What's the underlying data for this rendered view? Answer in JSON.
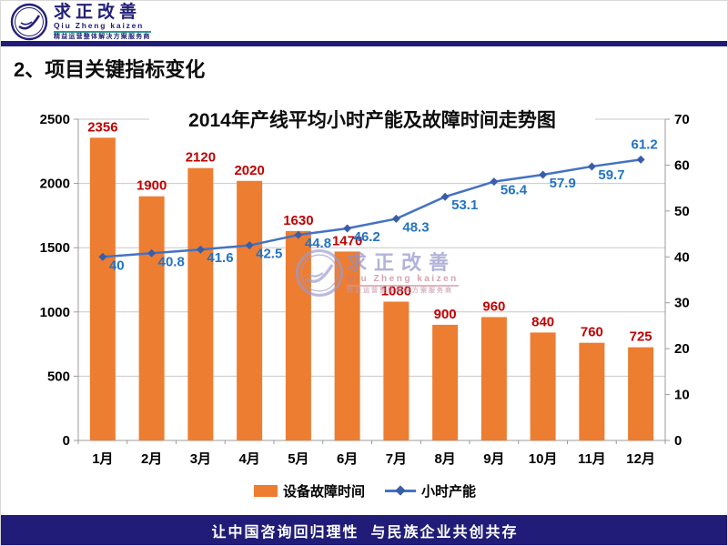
{
  "header": {
    "logo_name": "求正改善",
    "logo_pinyin": "Qiu Zheng kaizen",
    "logo_tagline": "精益运营整体解决方案服务商"
  },
  "section_title": "2、项目关键指标变化",
  "chart_data": {
    "type": "bar+line combo",
    "title": "2014年产线平均小时产能及故障时间走势图",
    "categories": [
      "1月",
      "2月",
      "3月",
      "4月",
      "5月",
      "6月",
      "7月",
      "8月",
      "9月",
      "10月",
      "11月",
      "12月"
    ],
    "series": [
      {
        "name": "设备故障时间",
        "type": "bar",
        "axis": "left",
        "color": "#ED7D31",
        "label_color": "#C00000",
        "values": [
          2356,
          1900,
          2120,
          2020,
          1630,
          1470,
          1080,
          900,
          960,
          840,
          760,
          725
        ]
      },
      {
        "name": "小时产能",
        "type": "line",
        "axis": "right",
        "color": "#4472C4",
        "label_color": "#2273C3",
        "values": [
          40,
          40.8,
          41.6,
          42.5,
          44.8,
          46.2,
          48.3,
          53.1,
          56.4,
          57.9,
          59.7,
          61.2
        ]
      }
    ],
    "left_axis": {
      "min": 0,
      "max": 2500,
      "step": 500
    },
    "right_axis": {
      "min": 0,
      "max": 70,
      "step": 10
    },
    "grid": true,
    "legend_position": "bottom"
  },
  "watermark": {
    "name": "求正改善",
    "pinyin": "Qiu Zheng kaizen",
    "tagline": "精益运营整体解决方案服务商"
  },
  "footer": {
    "slogan": "让中国咨询回归理性  与民族企业共创共存"
  },
  "colors": {
    "navy": "#211c77",
    "bar_orange": "#ED7D31",
    "line_blue": "#4472C4",
    "bar_label_red": "#C00000",
    "line_label_blue": "#2273C3",
    "grid_gray": "#c8c8c8"
  }
}
